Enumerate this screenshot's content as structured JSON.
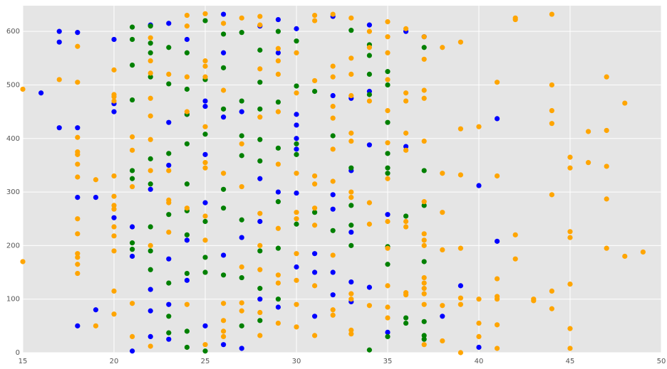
{
  "chart_data": {
    "type": "scatter",
    "grid": true,
    "xlim": [
      15,
      50
    ],
    "xticks": [
      15,
      20,
      25,
      30,
      35,
      40,
      45,
      50
    ],
    "ylim": [
      0,
      648
    ],
    "yticks": [
      0,
      100,
      200,
      300,
      400,
      500,
      600
    ],
    "series": [
      {
        "color": "#0000ff",
        "x": [
          17,
          17,
          17,
          16,
          18,
          18,
          18,
          18,
          19,
          19,
          20,
          20,
          20,
          20,
          21,
          21,
          21,
          22,
          22,
          22,
          22,
          22,
          23,
          23,
          23,
          23,
          23,
          23,
          24,
          24,
          24,
          24,
          25,
          25,
          25,
          25,
          25,
          26,
          26,
          26,
          26,
          26,
          27,
          27,
          27,
          28,
          28,
          28,
          28,
          29,
          29,
          29,
          29,
          30,
          30,
          30,
          30,
          30,
          30,
          30,
          31,
          31,
          31,
          32,
          32,
          32,
          32,
          32,
          32,
          33,
          33,
          33,
          33,
          33,
          34,
          34,
          34,
          34,
          35,
          35,
          36,
          36,
          37,
          38,
          39,
          40,
          40,
          41,
          41
        ],
        "values": [
          600,
          580,
          420,
          485,
          598,
          420,
          290,
          50,
          290,
          80,
          585,
          465,
          450,
          252,
          235,
          180,
          3,
          612,
          305,
          118,
          78,
          30,
          615,
          430,
          350,
          175,
          90,
          25,
          585,
          445,
          210,
          135,
          470,
          460,
          370,
          280,
          50,
          632,
          560,
          440,
          182,
          15,
          450,
          215,
          8,
          610,
          325,
          245,
          100,
          622,
          560,
          300,
          85,
          605,
          445,
          425,
          400,
          380,
          298,
          160,
          185,
          150,
          68,
          628,
          480,
          295,
          268,
          150,
          108,
          475,
          340,
          225,
          132,
          95,
          612,
          488,
          388,
          122,
          258,
          38,
          600,
          385,
          590,
          68,
          125,
          312,
          10,
          437,
          208
        ]
      },
      {
        "color": "#008000",
        "x": [
          21,
          21,
          21,
          21,
          21,
          21,
          21,
          21,
          22,
          22,
          22,
          22,
          22,
          22,
          22,
          22,
          22,
          23,
          23,
          23,
          23,
          23,
          23,
          23,
          24,
          24,
          24,
          24,
          24,
          24,
          24,
          24,
          24,
          24,
          25,
          25,
          25,
          25,
          25,
          25,
          25,
          26,
          26,
          26,
          26,
          26,
          26,
          27,
          27,
          27,
          27,
          27,
          27,
          27,
          28,
          28,
          28,
          28,
          28,
          28,
          28,
          28,
          29,
          29,
          29,
          29,
          29,
          29,
          30,
          30,
          30,
          30,
          30,
          31,
          31,
          32,
          32,
          33,
          33,
          33,
          33,
          33,
          34,
          34,
          34,
          34,
          34,
          35,
          35,
          35,
          35,
          35,
          35,
          35,
          35,
          35,
          36,
          36,
          36,
          37,
          37,
          37,
          37,
          37,
          37,
          37
        ],
        "values": [
          608,
          585,
          537,
          472,
          340,
          325,
          205,
          193,
          610,
          578,
          560,
          515,
          362,
          315,
          235,
          190,
          155,
          570,
          502,
          372,
          258,
          130,
          68,
          37,
          560,
          492,
          445,
          390,
          315,
          265,
          220,
          148,
          40,
          10,
          620,
          510,
          408,
          245,
          178,
          150,
          3,
          595,
          532,
          455,
          305,
          270,
          145,
          598,
          470,
          405,
          368,
          248,
          140,
          50,
          565,
          505,
          455,
          398,
          358,
          190,
          120,
          60,
          600,
          468,
          382,
          282,
          195,
          100,
          582,
          498,
          390,
          370,
          240,
          488,
          262,
          405,
          228,
          602,
          345,
          275,
          238,
          200,
          575,
          555,
          520,
          482,
          5,
          525,
          500,
          430,
          372,
          345,
          335,
          198,
          165,
          30,
          255,
          65,
          55,
          570,
          340,
          275,
          170,
          58,
          32,
          25
        ]
      },
      {
        "color": "#ffa500",
        "x": [
          15,
          15,
          17,
          18,
          18,
          18,
          18,
          18,
          18,
          18,
          18,
          18,
          18,
          18,
          18,
          18,
          19,
          19,
          20,
          20,
          20,
          20,
          20,
          20,
          20,
          20,
          20,
          20,
          20,
          20,
          20,
          21,
          21,
          21,
          21,
          21,
          22,
          22,
          22,
          22,
          22,
          22,
          22,
          22,
          22,
          23,
          23,
          23,
          23,
          23,
          24,
          24,
          24,
          24,
          24,
          24,
          25,
          25,
          25,
          25,
          25,
          25,
          25,
          25,
          25,
          25,
          26,
          26,
          26,
          26,
          26,
          26,
          26,
          27,
          27,
          27,
          27,
          27,
          27,
          28,
          28,
          28,
          28,
          28,
          28,
          28,
          28,
          28,
          29,
          29,
          29,
          29,
          29,
          29,
          29,
          29,
          29,
          30,
          30,
          30,
          30,
          30,
          30,
          30,
          30,
          30,
          31,
          31,
          31,
          31,
          31,
          31,
          31,
          31,
          31,
          32,
          32,
          32,
          32,
          32,
          32,
          32,
          32,
          32,
          32,
          33,
          33,
          33,
          33,
          33,
          33,
          33,
          33,
          33,
          33,
          33,
          33,
          34,
          34,
          34,
          34,
          34,
          34,
          35,
          35,
          35,
          35,
          35,
          35,
          35,
          35,
          35,
          35,
          35,
          35,
          36,
          36,
          36,
          36,
          36,
          36,
          36,
          36,
          36,
          37,
          37,
          37,
          37,
          37,
          37,
          37,
          37,
          37,
          37,
          37,
          37,
          37,
          37,
          37,
          38,
          38,
          38,
          38,
          38,
          38,
          39,
          39,
          39,
          39,
          39,
          39,
          39,
          40,
          40,
          40,
          40,
          41,
          41,
          41,
          41,
          41,
          41,
          41,
          42,
          42,
          42,
          42,
          43,
          43,
          44,
          44,
          44,
          44,
          44,
          44,
          44,
          45,
          45,
          45,
          45,
          45,
          45,
          45,
          46,
          46,
          47,
          47,
          47,
          47,
          47,
          48,
          48,
          49
        ],
        "values": [
          492,
          170,
          510,
          572,
          505,
          402,
          375,
          370,
          352,
          328,
          250,
          222,
          185,
          178,
          165,
          148,
          323,
          50,
          528,
          482,
          478,
          470,
          330,
          292,
          275,
          268,
          235,
          218,
          190,
          115,
          72,
          403,
          378,
          310,
          92,
          30,
          588,
          545,
          522,
          475,
          442,
          398,
          340,
          200,
          12,
          520,
          340,
          285,
          280,
          225,
          630,
          610,
          515,
          450,
          270,
          90,
          633,
          545,
          535,
          515,
          422,
          355,
          345,
          255,
          210,
          15,
          615,
          490,
          335,
          92,
          60,
          40,
          30,
          625,
          390,
          310,
          160,
          93,
          78,
          628,
          612,
          530,
          440,
          260,
          200,
          155,
          75,
          32,
          568,
          545,
          520,
          450,
          352,
          232,
          145,
          130,
          55,
          560,
          485,
          335,
          262,
          250,
          185,
          135,
          90,
          48,
          630,
          620,
          508,
          330,
          315,
          270,
          238,
          125,
          32,
          632,
          535,
          515,
          460,
          438,
          380,
          320,
          182,
          80,
          70,
          625,
          550,
          520,
          480,
          410,
          395,
          300,
          290,
          110,
          100,
          42,
          35,
          600,
          570,
          470,
          280,
          240,
          88,
          618,
          590,
          560,
          510,
          452,
          392,
          325,
          245,
          195,
          125,
          85,
          65,
          605,
          485,
          470,
          410,
          378,
          245,
          235,
          112,
          108,
          590,
          548,
          490,
          475,
          395,
          282,
          222,
          210,
          200,
          140,
          130,
          120,
          110,
          90,
          15,
          570,
          335,
          262,
          192,
          88,
          22,
          580,
          418,
          332,
          195,
          102,
          90,
          0,
          422,
          100,
          55,
          30,
          505,
          330,
          138,
          105,
          100,
          52,
          8,
          625,
          622,
          220,
          175,
          100,
          97,
          632,
          500,
          452,
          428,
          295,
          115,
          82,
          365,
          345,
          226,
          215,
          128,
          45,
          8,
          413,
          355,
          515,
          415,
          348,
          287,
          195,
          466,
          180,
          188
        ]
      }
    ]
  }
}
